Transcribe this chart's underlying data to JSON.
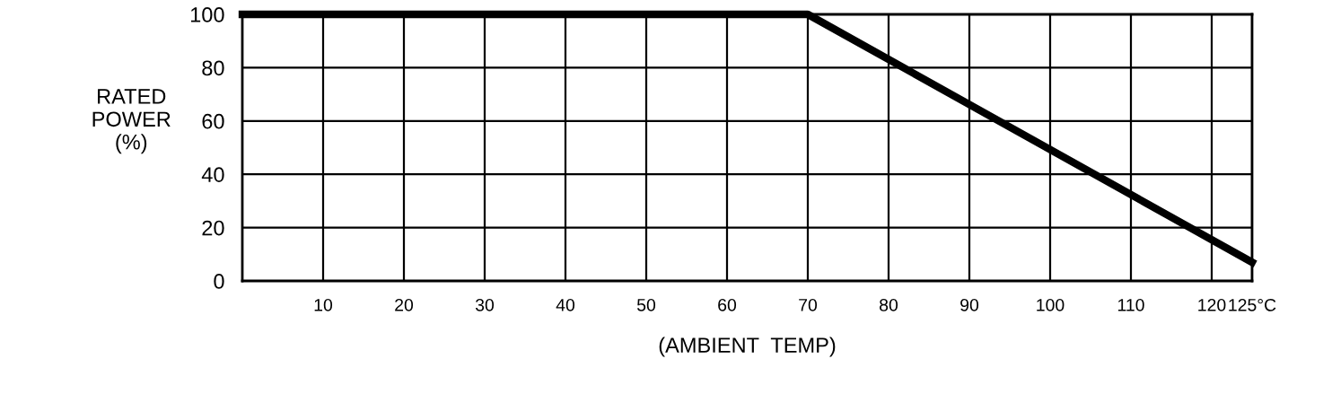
{
  "chart_data": {
    "type": "line",
    "xlabel": "(AMBIENT  TEMP)",
    "ylabel": "RATED\nPOWER\n(%)",
    "x": [
      0,
      70,
      125
    ],
    "series": [
      {
        "color": "#000000",
        "values": [
          100,
          100,
          7
        ]
      }
    ],
    "xlim": [
      0,
      125
    ],
    "xticks": [
      10,
      20,
      30,
      40,
      50,
      60,
      70,
      80,
      90,
      100,
      110,
      120,
      {
        "value": 125,
        "label": "125°C"
      }
    ],
    "ylim": [
      0,
      100
    ],
    "yticks": [
      0,
      20,
      40,
      60,
      80,
      100
    ],
    "grid": true,
    "marker": "none",
    "line_style": "solid"
  }
}
